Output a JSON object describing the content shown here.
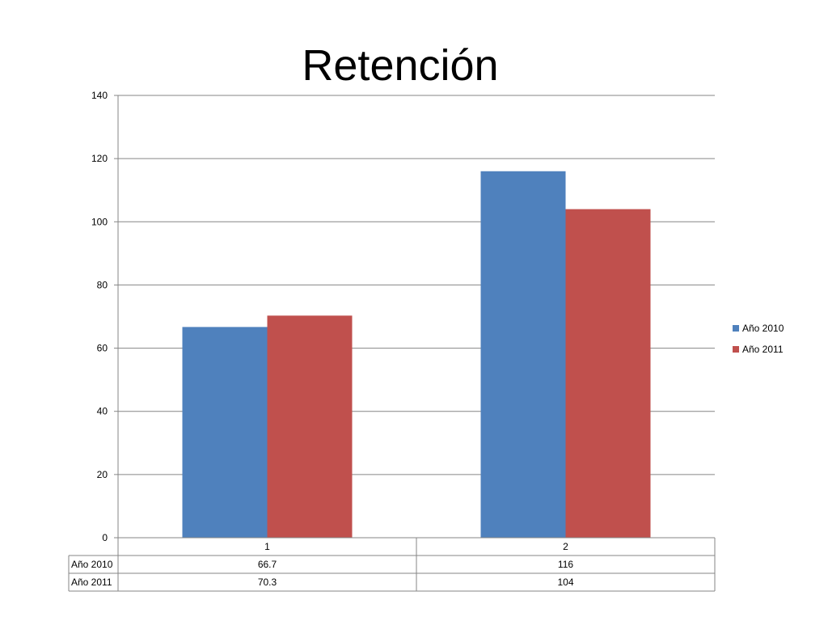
{
  "chart_data": {
    "type": "bar",
    "title": "Retención",
    "categories": [
      "1",
      "2"
    ],
    "series": [
      {
        "name": "Año 2010",
        "color": "#4f81bd",
        "values": [
          66.7,
          116
        ],
        "labels": [
          "66.7",
          "116"
        ]
      },
      {
        "name": "Año 2011",
        "color": "#c0504d",
        "values": [
          70.3,
          104
        ],
        "labels": [
          "70.3",
          "104"
        ]
      }
    ],
    "ylim": [
      0,
      140
    ],
    "yticks": [
      "0",
      "20",
      "40",
      "60",
      "80",
      "100",
      "120",
      "140"
    ],
    "grid": true,
    "legend": "right",
    "data_table": true
  }
}
